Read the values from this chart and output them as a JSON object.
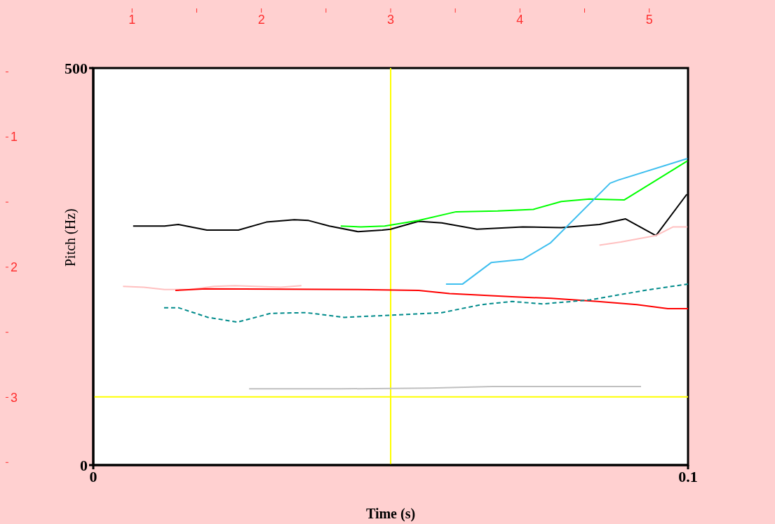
{
  "chart_data": {
    "type": "line",
    "xlabel": "Time (s)",
    "ylabel": "Pitch (Hz)",
    "xlim": [
      0,
      0.1
    ],
    "xticks": [
      0,
      0.1
    ],
    "ylim": [
      0,
      500
    ],
    "yticks": [
      0,
      500
    ],
    "x2lim": [
      0.7,
      5.3
    ],
    "x2ticks": [
      1,
      {
        "value": 1.5,
        "label": null
      },
      2,
      {
        "value": 2.5,
        "label": null
      },
      3,
      {
        "value": 3.5,
        "label": null
      },
      4,
      {
        "value": 4.5,
        "label": null
      },
      5
    ],
    "y2lim": [
      3.52,
      0.47
    ],
    "y2ticks": [
      {
        "value": 0.5,
        "label": null
      },
      1,
      {
        "value": 1.5,
        "label": null
      },
      2,
      {
        "value": 2.5,
        "label": null
      },
      3,
      {
        "value": 3.5,
        "label": null
      }
    ],
    "marker": "none",
    "ref_lines": [
      {
        "axis": "x",
        "value": 0.05,
        "color": "#ffff00"
      },
      {
        "axis": "y",
        "value": 86,
        "color": "#ffff00"
      }
    ],
    "series": [
      {
        "color": "#000000",
        "x": [
          0.0067,
          0.012,
          0.0143,
          0.0191,
          0.0244,
          0.0291,
          0.0338,
          0.0362,
          0.0397,
          0.0445,
          0.0486,
          0.05,
          0.0547,
          0.0586,
          0.0645,
          0.0722,
          0.0787,
          0.0851,
          0.0895,
          0.0946,
          0.0998
        ],
        "values": [
          301,
          301,
          303,
          296,
          296,
          306,
          309,
          308,
          301,
          294,
          296,
          297,
          307,
          305,
          297,
          300,
          299,
          303,
          310,
          289,
          341
        ]
      },
      {
        "color": "#00ff00",
        "x": [
          0.0416,
          0.045,
          0.049,
          0.0547,
          0.061,
          0.068,
          0.074,
          0.0787,
          0.0834,
          0.0893,
          0.0999
        ],
        "values": [
          301,
          300,
          301,
          308,
          319,
          320,
          322,
          332,
          335,
          334,
          383
        ]
      },
      {
        "color": "#3fbfef",
        "x": [
          0.0593,
          0.0621,
          0.0669,
          0.0722,
          0.0769,
          0.0869,
          0.0883,
          0.0999
        ],
        "values": [
          228,
          228,
          255,
          259,
          280,
          355,
          359,
          386
        ]
      },
      {
        "color": "#ffc0c0",
        "x": [
          0.005,
          0.0085,
          0.012,
          0.0162,
          0.0203,
          0.0238,
          0.0315,
          0.035
        ],
        "values": [
          225,
          224,
          221,
          221,
          225,
          226,
          224,
          226
        ]
      },
      {
        "color": "#ffc0c0",
        "x": [
          0.0851,
          0.0887,
          0.0946,
          0.0975,
          0.0999
        ],
        "values": [
          277,
          281,
          289,
          300,
          300
        ]
      },
      {
        "color": "#ff0000",
        "x": [
          0.0138,
          0.0189,
          0.0445,
          0.0547,
          0.0599,
          0.0704,
          0.077,
          0.0848,
          0.0914,
          0.0966,
          0.1
        ],
        "values": [
          220,
          222,
          221,
          220,
          216,
          212,
          210,
          206,
          202,
          197,
          197
        ]
      },
      {
        "color": "#008b8b",
        "line_style": "dashed",
        "x": [
          0.0119,
          0.0144,
          0.0193,
          0.0242,
          0.0298,
          0.0357,
          0.0422,
          0.0507,
          0.0586,
          0.0652,
          0.0704,
          0.0756,
          0.0835,
          0.0927,
          0.1
        ],
        "values": [
          198,
          198,
          186,
          180,
          191,
          192,
          186,
          189,
          192,
          202,
          206,
          203,
          208,
          220,
          228
        ]
      },
      {
        "color": "#c0c0c0",
        "x": [
          0.0262,
          0.0416,
          0.0566,
          0.0671,
          0.0921
        ],
        "values": [
          96,
          96,
          97,
          99,
          99
        ]
      }
    ]
  }
}
